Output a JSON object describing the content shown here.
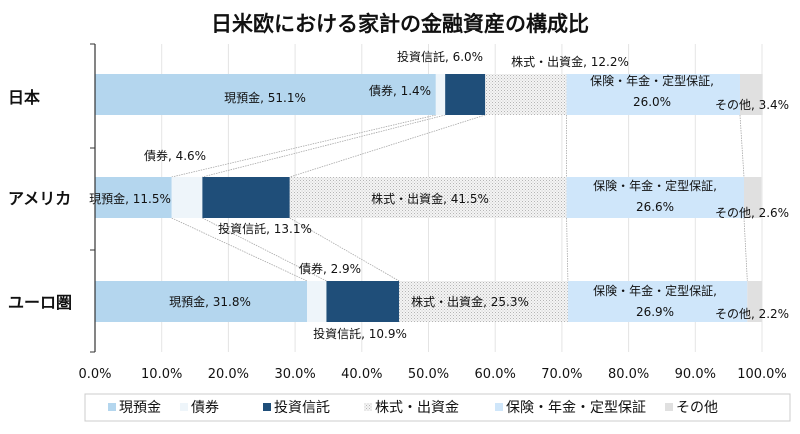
{
  "chart_data": {
    "type": "bar",
    "orientation": "horizontal",
    "stacked": "100%",
    "title": "日米欧における家計の金融資産の構成比",
    "categories": [
      "日本",
      "アメリカ",
      "ユーロ圏"
    ],
    "series": [
      {
        "name": "現預金",
        "color": "#b4d6ee",
        "values": [
          51.1,
          11.5,
          31.8
        ]
      },
      {
        "name": "債券",
        "color": "#eef5fa",
        "values": [
          1.4,
          4.6,
          2.9
        ]
      },
      {
        "name": "投資信託",
        "color": "#1f4e79",
        "values": [
          6.0,
          13.1,
          10.9
        ]
      },
      {
        "name": "株式・出資金",
        "color": "#e6e6e6",
        "pattern": "dotted",
        "values": [
          12.2,
          41.5,
          25.3
        ]
      },
      {
        "name": "保険・年金・定型保証",
        "color": "#cfe6fa",
        "values": [
          26.0,
          26.6,
          26.9
        ]
      },
      {
        "name": "その他",
        "color": "#e0e0e0",
        "values": [
          3.4,
          2.6,
          2.2
        ]
      }
    ],
    "data_labels": [
      [
        "現預金, 51.1%",
        "債券, 1.4%",
        "投資信託, 6.0%",
        "株式・出資金, 12.2%",
        [
          "保険・年金・定型保証,",
          "26.0%"
        ],
        "その他, 3.4%"
      ],
      [
        "現預金, 11.5%",
        "債券, 4.6%",
        "投資信託, 13.1%",
        "株式・出資金, 41.5%",
        [
          "保険・年金・定型保証,",
          "26.6%"
        ],
        "その他, 2.6%"
      ],
      [
        "現預金, 31.8%",
        "債券, 2.9%",
        "投資信託, 10.9%",
        "株式・出資金, 25.3%",
        [
          "保険・年金・定型保証,",
          "26.9%"
        ],
        "その他, 2.2%"
      ]
    ],
    "xlim": [
      0,
      100
    ],
    "xticks": [
      "0.0%",
      "10.0%",
      "20.0%",
      "30.0%",
      "40.0%",
      "50.0%",
      "60.0%",
      "70.0%",
      "80.0%",
      "90.0%",
      "100.0%"
    ],
    "grid": true,
    "legend_position": "bottom",
    "series_lines": true
  }
}
